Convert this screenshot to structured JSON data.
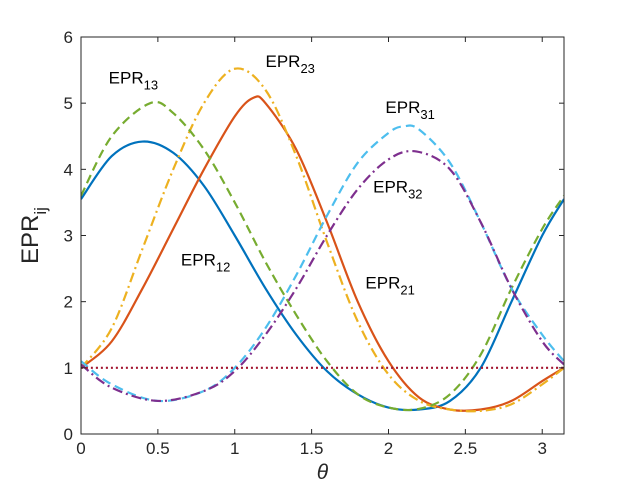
{
  "chart_data": {
    "type": "line",
    "xlabel": "θ",
    "ylabel": {
      "main": "EPR",
      "sub": "ij"
    },
    "xlim": [
      0,
      3.1416
    ],
    "ylim": [
      0,
      6
    ],
    "xticks": [
      0,
      0.5,
      1,
      1.5,
      2,
      2.5,
      3
    ],
    "xtick_labels": [
      "0",
      "0.5",
      "1",
      "1.5",
      "2",
      "2.5",
      "3"
    ],
    "yticks": [
      0,
      1,
      2,
      3,
      4,
      5,
      6
    ],
    "ytick_labels": [
      "0",
      "1",
      "2",
      "3",
      "4",
      "5",
      "6"
    ],
    "grid": false,
    "legend": "none",
    "series": [
      {
        "name": "EPR12",
        "color": "#0072BD",
        "dash": "solid",
        "x": [
          0,
          0.2,
          0.4,
          0.6,
          0.8,
          1.0,
          1.2,
          1.4,
          1.6,
          1.8,
          2.0,
          2.2,
          2.4,
          2.6,
          2.8,
          3.0,
          3.1416
        ],
        "y": [
          3.55,
          4.2,
          4.42,
          4.25,
          3.75,
          3.0,
          2.2,
          1.5,
          0.95,
          0.6,
          0.4,
          0.37,
          0.5,
          1.0,
          2.0,
          3.0,
          3.55
        ]
      },
      {
        "name": "EPR21",
        "color": "#D95319",
        "dash": "solid",
        "x": [
          0,
          0.2,
          0.4,
          0.6,
          0.8,
          1.0,
          1.12,
          1.2,
          1.4,
          1.6,
          1.8,
          2.0,
          2.2,
          2.4,
          2.6,
          2.8,
          3.0,
          3.1416
        ],
        "y": [
          1.0,
          1.4,
          2.2,
          3.1,
          4.0,
          4.8,
          5.08,
          5.0,
          4.3,
          3.2,
          2.0,
          1.1,
          0.55,
          0.37,
          0.37,
          0.5,
          0.8,
          1.0
        ]
      },
      {
        "name": "EPR23",
        "color": "#EDB120",
        "dash": "dashdot",
        "x": [
          0,
          0.2,
          0.4,
          0.6,
          0.8,
          1.0,
          1.2,
          1.4,
          1.6,
          1.8,
          2.0,
          2.2,
          2.4,
          2.6,
          2.8,
          3.0,
          3.1416
        ],
        "y": [
          1.0,
          1.6,
          2.8,
          4.0,
          5.0,
          5.52,
          5.2,
          4.2,
          2.9,
          1.7,
          0.9,
          0.5,
          0.37,
          0.35,
          0.45,
          0.75,
          1.0
        ]
      },
      {
        "name": "EPR13",
        "color": "#77AC30",
        "dash": "dashed",
        "x": [
          0,
          0.2,
          0.45,
          0.6,
          0.8,
          1.0,
          1.2,
          1.4,
          1.6,
          1.8,
          2.0,
          2.2,
          2.4,
          2.6,
          2.8,
          3.0,
          3.1416
        ],
        "y": [
          3.6,
          4.5,
          5.0,
          4.85,
          4.3,
          3.5,
          2.6,
          1.8,
          1.1,
          0.6,
          0.4,
          0.38,
          0.6,
          1.2,
          2.2,
          3.1,
          3.6
        ]
      },
      {
        "name": "EPR31",
        "color": "#4DBEEE",
        "dash": "dashed",
        "x": [
          0,
          0.2,
          0.5,
          0.8,
          1.0,
          1.2,
          1.4,
          1.6,
          1.8,
          2.0,
          2.1,
          2.2,
          2.4,
          2.6,
          2.8,
          3.0,
          3.1416
        ],
        "y": [
          1.1,
          0.75,
          0.5,
          0.65,
          1.0,
          1.6,
          2.4,
          3.3,
          4.1,
          4.55,
          4.65,
          4.6,
          4.1,
          3.2,
          2.2,
          1.5,
          1.1
        ]
      },
      {
        "name": "EPR32",
        "color": "#7E2F8E",
        "dash": "dashdot",
        "x": [
          0,
          0.2,
          0.5,
          0.8,
          1.0,
          1.2,
          1.4,
          1.6,
          1.8,
          2.0,
          2.18,
          2.4,
          2.6,
          2.8,
          3.0,
          3.1416
        ],
        "y": [
          1.05,
          0.7,
          0.5,
          0.65,
          0.95,
          1.5,
          2.2,
          3.0,
          3.7,
          4.15,
          4.27,
          4.0,
          3.2,
          2.2,
          1.4,
          1.05
        ]
      },
      {
        "name": "reference",
        "color": "#A2142F",
        "dash": "dotted",
        "x": [
          0,
          3.1416
        ],
        "y": [
          1,
          1
        ]
      }
    ],
    "annotations": [
      {
        "main": "EPR",
        "sub": "13",
        "x": 0.18,
        "y": 5.3
      },
      {
        "main": "EPR",
        "sub": "23",
        "x": 1.2,
        "y": 5.55
      },
      {
        "main": "EPR",
        "sub": "31",
        "x": 1.98,
        "y": 4.85
      },
      {
        "main": "EPR",
        "sub": "32",
        "x": 1.9,
        "y": 3.65
      },
      {
        "main": "EPR",
        "sub": "12",
        "x": 0.65,
        "y": 2.55
      },
      {
        "main": "EPR",
        "sub": "21",
        "x": 1.85,
        "y": 2.2
      }
    ]
  }
}
